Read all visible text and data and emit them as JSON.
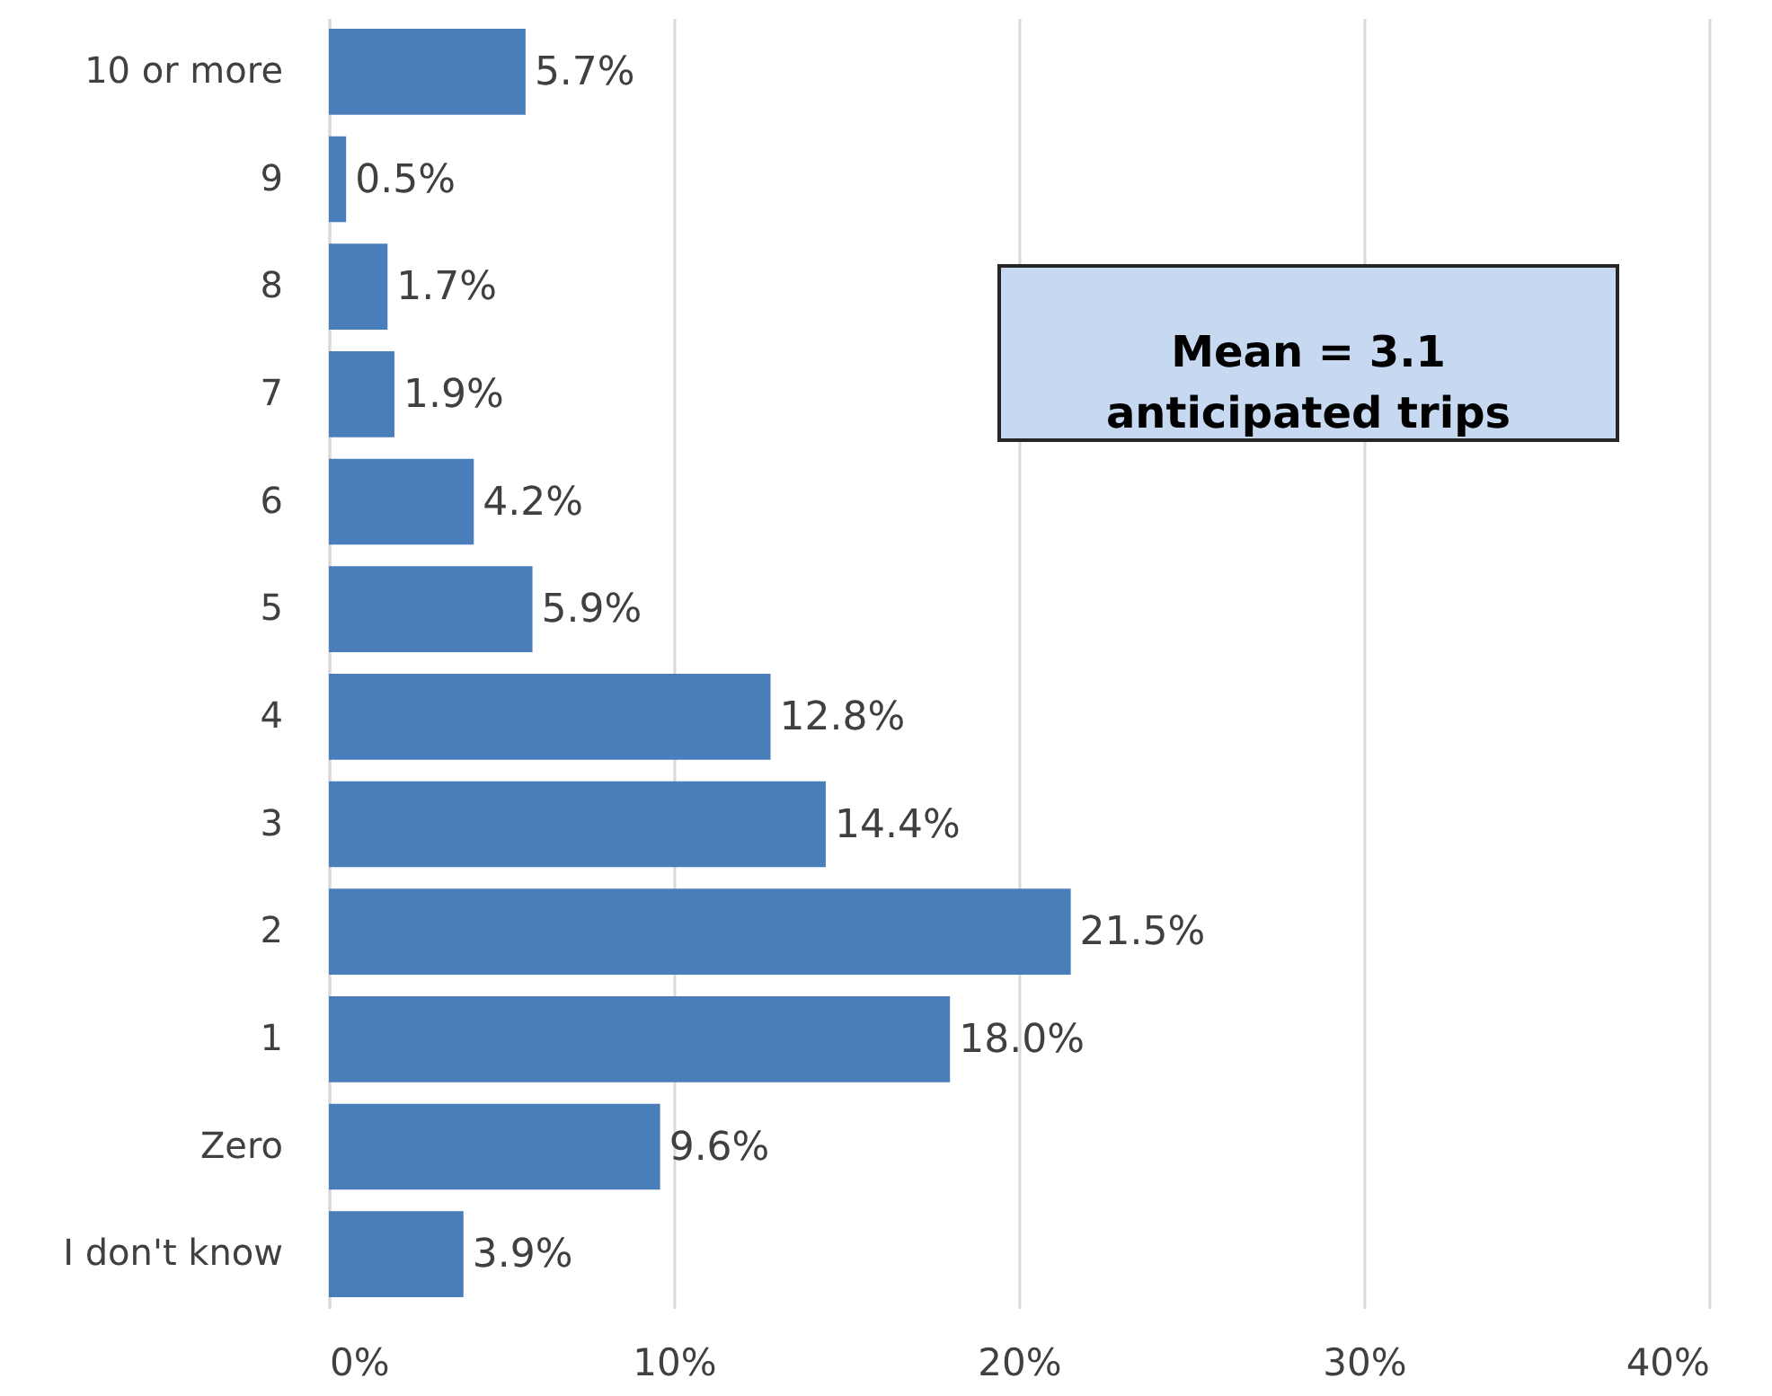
{
  "chart_data": {
    "type": "bar",
    "orientation": "horizontal",
    "categories": [
      "10 or more",
      "9",
      "8",
      "7",
      "6",
      "5",
      "4",
      "3",
      "2",
      "1",
      "Zero",
      "I don't know"
    ],
    "values": [
      5.7,
      0.5,
      1.7,
      1.9,
      4.2,
      5.9,
      12.8,
      14.4,
      21.5,
      18.0,
      9.6,
      3.9
    ],
    "value_labels": [
      "5.7%",
      "0.5%",
      "1.7%",
      "1.9%",
      "4.2%",
      "5.9%",
      "12.8%",
      "14.4%",
      "21.5%",
      "18.0%",
      "9.6%",
      "3.9%"
    ],
    "color": "#4a7ebb",
    "xlim": [
      0,
      40
    ],
    "xticks": [
      {
        "value": 0,
        "label": "0%"
      },
      {
        "value": 10,
        "label": "10%"
      },
      {
        "value": 20,
        "label": "20%"
      },
      {
        "value": 30,
        "label": "30%"
      },
      {
        "value": 40,
        "label": "40%"
      }
    ],
    "grid": "x",
    "annotations": [
      "Mean = 3.1\nanticipated trips"
    ]
  }
}
